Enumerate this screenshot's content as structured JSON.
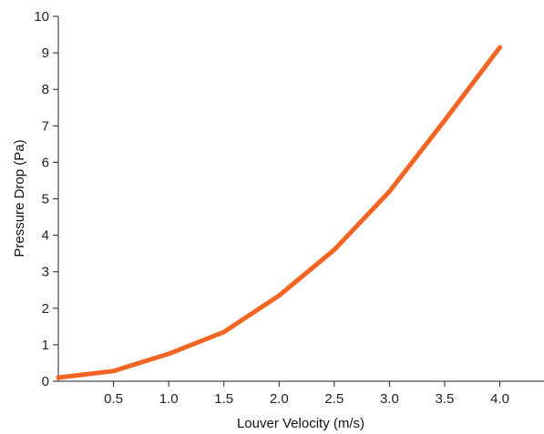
{
  "chart_data": {
    "type": "line",
    "title": "",
    "xlabel": "Louver Velocity (m/s)",
    "ylabel": "Pressure Drop (Pa)",
    "xlim": [
      0,
      4.4
    ],
    "ylim": [
      0,
      10
    ],
    "x_ticks": [
      "0.5",
      "1.0",
      "1.5",
      "2.0",
      "2.5",
      "3.0",
      "3.5",
      "4.0"
    ],
    "y_ticks": [
      "0",
      "1",
      "2",
      "3",
      "4",
      "5",
      "6",
      "7",
      "8",
      "9",
      "10"
    ],
    "grid": false,
    "legend": "none",
    "series": [
      {
        "color": "#f26522",
        "x": [
          0.0,
          0.5,
          1.0,
          1.5,
          2.0,
          2.5,
          3.0,
          3.5,
          4.0
        ],
        "y": [
          0.1,
          0.28,
          0.75,
          1.35,
          2.35,
          3.6,
          5.2,
          7.15,
          9.15
        ]
      }
    ]
  }
}
